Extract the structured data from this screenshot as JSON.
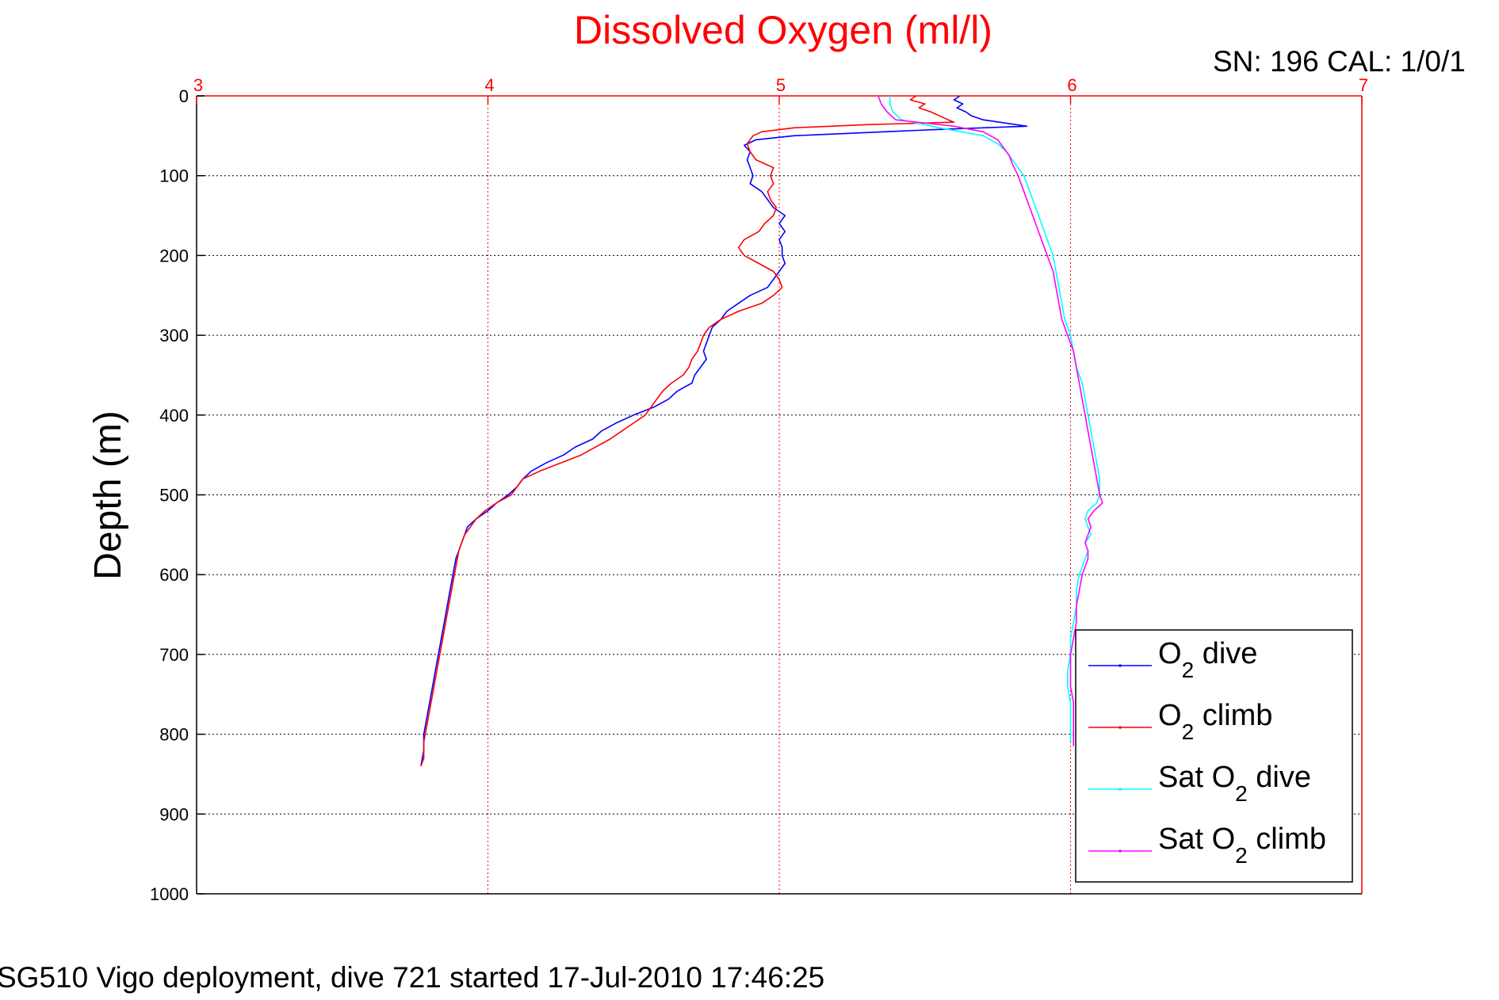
{
  "chart_data": {
    "type": "line",
    "title": "Dissolved Oxygen (ml/l)",
    "xlim": [
      3,
      7
    ],
    "ylim": [
      0,
      1000
    ],
    "y_reversed": true,
    "x_axis_position": "top",
    "x_ticks": [
      3,
      4,
      5,
      6,
      7
    ],
    "y_ticks": [
      0,
      100,
      200,
      300,
      400,
      500,
      600,
      700,
      800,
      900,
      1000
    ],
    "xlabel": "",
    "ylabel": "Depth (m)",
    "grid": true,
    "legend_position": "bottom-right",
    "series": [
      {
        "name": "O2 dive",
        "name_main": "O",
        "name_sub": "2",
        "name_tail": " dive",
        "color": "#0000ff",
        "points": [
          [
            5.62,
            0
          ],
          [
            5.6,
            5
          ],
          [
            5.63,
            10
          ],
          [
            5.61,
            15
          ],
          [
            5.64,
            20
          ],
          [
            5.66,
            25
          ],
          [
            5.7,
            30
          ],
          [
            5.85,
            38
          ],
          [
            5.55,
            42
          ],
          [
            5.3,
            46
          ],
          [
            5.05,
            50
          ],
          [
            4.92,
            55
          ],
          [
            4.88,
            62
          ],
          [
            4.9,
            70
          ],
          [
            4.89,
            80
          ],
          [
            4.9,
            90
          ],
          [
            4.91,
            100
          ],
          [
            4.9,
            110
          ],
          [
            4.94,
            120
          ],
          [
            4.96,
            130
          ],
          [
            4.98,
            140
          ],
          [
            5.02,
            150
          ],
          [
            5.0,
            160
          ],
          [
            5.02,
            170
          ],
          [
            5.0,
            180
          ],
          [
            5.01,
            190
          ],
          [
            5.01,
            200
          ],
          [
            5.02,
            210
          ],
          [
            5.0,
            220
          ],
          [
            4.98,
            230
          ],
          [
            4.96,
            240
          ],
          [
            4.9,
            250
          ],
          [
            4.86,
            260
          ],
          [
            4.82,
            270
          ],
          [
            4.8,
            280
          ],
          [
            4.77,
            290
          ],
          [
            4.76,
            300
          ],
          [
            4.75,
            310
          ],
          [
            4.74,
            320
          ],
          [
            4.75,
            330
          ],
          [
            4.73,
            340
          ],
          [
            4.71,
            350
          ],
          [
            4.7,
            360
          ],
          [
            4.65,
            370
          ],
          [
            4.62,
            380
          ],
          [
            4.57,
            390
          ],
          [
            4.5,
            400
          ],
          [
            4.44,
            410
          ],
          [
            4.39,
            420
          ],
          [
            4.36,
            430
          ],
          [
            4.3,
            440
          ],
          [
            4.26,
            450
          ],
          [
            4.2,
            460
          ],
          [
            4.15,
            470
          ],
          [
            4.12,
            480
          ],
          [
            4.1,
            490
          ],
          [
            4.07,
            500
          ],
          [
            4.03,
            510
          ],
          [
            4.0,
            520
          ],
          [
            3.96,
            530
          ],
          [
            3.93,
            540
          ],
          [
            3.92,
            550
          ],
          [
            3.91,
            560
          ],
          [
            3.9,
            570
          ],
          [
            3.89,
            580
          ],
          [
            3.88,
            600
          ],
          [
            3.87,
            620
          ],
          [
            3.86,
            640
          ],
          [
            3.85,
            660
          ],
          [
            3.84,
            680
          ],
          [
            3.83,
            700
          ],
          [
            3.82,
            720
          ],
          [
            3.81,
            740
          ],
          [
            3.8,
            760
          ],
          [
            3.79,
            780
          ],
          [
            3.78,
            800
          ],
          [
            3.78,
            820
          ],
          [
            3.77,
            840
          ]
        ]
      },
      {
        "name": "O2 climb",
        "name_main": "O",
        "name_sub": "2",
        "name_tail": " climb",
        "color": "#ff0000",
        "points": [
          [
            5.47,
            0
          ],
          [
            5.45,
            5
          ],
          [
            5.5,
            10
          ],
          [
            5.48,
            15
          ],
          [
            5.52,
            20
          ],
          [
            5.55,
            25
          ],
          [
            5.58,
            30
          ],
          [
            5.6,
            33
          ],
          [
            5.3,
            36
          ],
          [
            5.05,
            40
          ],
          [
            4.94,
            45
          ],
          [
            4.91,
            50
          ],
          [
            4.89,
            60
          ],
          [
            4.9,
            70
          ],
          [
            4.92,
            80
          ],
          [
            4.98,
            90
          ],
          [
            4.97,
            100
          ],
          [
            4.98,
            110
          ],
          [
            4.96,
            120
          ],
          [
            4.97,
            130
          ],
          [
            4.99,
            140
          ],
          [
            4.98,
            150
          ],
          [
            4.95,
            160
          ],
          [
            4.93,
            170
          ],
          [
            4.88,
            180
          ],
          [
            4.86,
            190
          ],
          [
            4.88,
            200
          ],
          [
            4.93,
            210
          ],
          [
            4.98,
            220
          ],
          [
            5.0,
            230
          ],
          [
            5.01,
            240
          ],
          [
            4.98,
            250
          ],
          [
            4.94,
            260
          ],
          [
            4.86,
            270
          ],
          [
            4.8,
            280
          ],
          [
            4.76,
            290
          ],
          [
            4.74,
            300
          ],
          [
            4.73,
            310
          ],
          [
            4.72,
            320
          ],
          [
            4.7,
            330
          ],
          [
            4.69,
            340
          ],
          [
            4.67,
            350
          ],
          [
            4.63,
            360
          ],
          [
            4.6,
            370
          ],
          [
            4.58,
            380
          ],
          [
            4.56,
            390
          ],
          [
            4.54,
            400
          ],
          [
            4.5,
            410
          ],
          [
            4.46,
            420
          ],
          [
            4.42,
            430
          ],
          [
            4.37,
            440
          ],
          [
            4.32,
            450
          ],
          [
            4.25,
            460
          ],
          [
            4.18,
            470
          ],
          [
            4.12,
            480
          ],
          [
            4.1,
            490
          ],
          [
            4.08,
            500
          ],
          [
            4.03,
            510
          ],
          [
            3.99,
            520
          ],
          [
            3.96,
            530
          ],
          [
            3.94,
            540
          ],
          [
            3.92,
            550
          ],
          [
            3.9,
            570
          ],
          [
            3.89,
            590
          ],
          [
            3.88,
            610
          ],
          [
            3.87,
            630
          ],
          [
            3.86,
            650
          ],
          [
            3.85,
            670
          ],
          [
            3.84,
            690
          ],
          [
            3.83,
            710
          ],
          [
            3.82,
            730
          ],
          [
            3.81,
            750
          ],
          [
            3.8,
            770
          ],
          [
            3.79,
            790
          ],
          [
            3.78,
            810
          ],
          [
            3.78,
            830
          ],
          [
            3.77,
            840
          ]
        ]
      },
      {
        "name": "Sat O2 dive",
        "name_main": "Sat O",
        "name_sub": "2",
        "name_tail": " dive",
        "color": "#00ffff",
        "points": [
          [
            5.38,
            0
          ],
          [
            5.38,
            10
          ],
          [
            5.39,
            20
          ],
          [
            5.42,
            30
          ],
          [
            5.55,
            40
          ],
          [
            5.7,
            50
          ],
          [
            5.75,
            60
          ],
          [
            5.78,
            70
          ],
          [
            5.8,
            80
          ],
          [
            5.82,
            90
          ],
          [
            5.84,
            100
          ],
          [
            5.86,
            120
          ],
          [
            5.88,
            140
          ],
          [
            5.9,
            160
          ],
          [
            5.92,
            180
          ],
          [
            5.94,
            200
          ],
          [
            5.95,
            220
          ],
          [
            5.96,
            240
          ],
          [
            5.97,
            260
          ],
          [
            5.98,
            280
          ],
          [
            6.0,
            300
          ],
          [
            6.01,
            320
          ],
          [
            6.02,
            340
          ],
          [
            6.04,
            360
          ],
          [
            6.05,
            380
          ],
          [
            6.06,
            400
          ],
          [
            6.07,
            420
          ],
          [
            6.08,
            440
          ],
          [
            6.09,
            460
          ],
          [
            6.1,
            480
          ],
          [
            6.1,
            500
          ],
          [
            6.09,
            510
          ],
          [
            6.06,
            520
          ],
          [
            6.05,
            530
          ],
          [
            6.06,
            540
          ],
          [
            6.07,
            550
          ],
          [
            6.05,
            560
          ],
          [
            6.06,
            570
          ],
          [
            6.05,
            580
          ],
          [
            6.04,
            590
          ],
          [
            6.03,
            600
          ],
          [
            6.02,
            620
          ],
          [
            6.02,
            640
          ],
          [
            6.01,
            660
          ],
          [
            6.0,
            680
          ],
          [
            6.0,
            700
          ],
          [
            5.99,
            720
          ],
          [
            5.99,
            740
          ],
          [
            6.0,
            760
          ],
          [
            6.0,
            780
          ],
          [
            6.0,
            800
          ],
          [
            6.0,
            810
          ]
        ]
      },
      {
        "name": "Sat O2 climb",
        "name_main": "Sat O",
        "name_sub": "2",
        "name_tail": " climb",
        "color": "#ff00ff",
        "points": [
          [
            5.34,
            0
          ],
          [
            5.35,
            10
          ],
          [
            5.37,
            20
          ],
          [
            5.4,
            30
          ],
          [
            5.6,
            38
          ],
          [
            5.7,
            45
          ],
          [
            5.75,
            55
          ],
          [
            5.77,
            65
          ],
          [
            5.79,
            75
          ],
          [
            5.8,
            85
          ],
          [
            5.82,
            100
          ],
          [
            5.84,
            120
          ],
          [
            5.86,
            140
          ],
          [
            5.88,
            160
          ],
          [
            5.9,
            180
          ],
          [
            5.92,
            200
          ],
          [
            5.94,
            220
          ],
          [
            5.95,
            240
          ],
          [
            5.96,
            260
          ],
          [
            5.97,
            280
          ],
          [
            5.99,
            300
          ],
          [
            6.01,
            320
          ],
          [
            6.02,
            340
          ],
          [
            6.03,
            360
          ],
          [
            6.04,
            380
          ],
          [
            6.05,
            400
          ],
          [
            6.06,
            420
          ],
          [
            6.07,
            440
          ],
          [
            6.08,
            460
          ],
          [
            6.09,
            480
          ],
          [
            6.1,
            500
          ],
          [
            6.11,
            510
          ],
          [
            6.08,
            520
          ],
          [
            6.06,
            530
          ],
          [
            6.07,
            540
          ],
          [
            6.06,
            550
          ],
          [
            6.05,
            560
          ],
          [
            6.06,
            570
          ],
          [
            6.06,
            580
          ],
          [
            6.05,
            590
          ],
          [
            6.04,
            600
          ],
          [
            6.03,
            620
          ],
          [
            6.02,
            640
          ],
          [
            6.02,
            660
          ],
          [
            6.01,
            680
          ],
          [
            6.0,
            700
          ],
          [
            6.0,
            720
          ],
          [
            6.0,
            740
          ],
          [
            6.01,
            760
          ],
          [
            6.01,
            780
          ],
          [
            6.01,
            800
          ],
          [
            6.01,
            815
          ]
        ]
      }
    ]
  },
  "header": {
    "sn_text": "SN: 196  CAL: 1/0/1"
  },
  "footer": {
    "text": "SG510 Vigo deployment, dive 721 started 17-Jul-2010 17:46:25"
  }
}
